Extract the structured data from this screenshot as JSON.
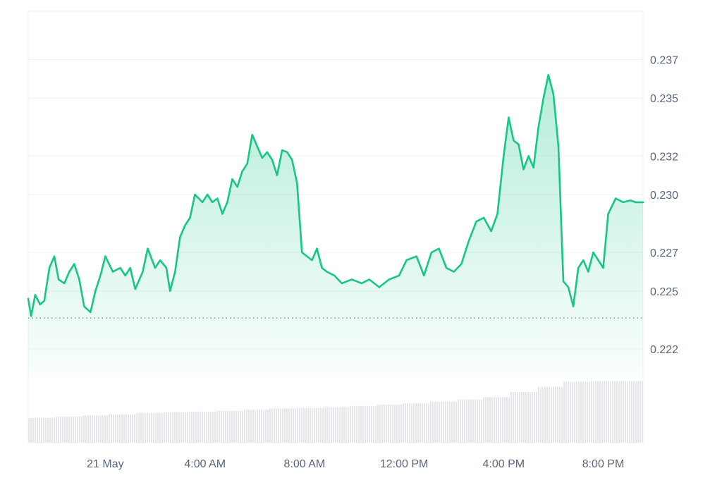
{
  "chart_data": {
    "type": "area",
    "title": "",
    "xlabel": "",
    "ylabel": "",
    "ylim": [
      0.2205,
      0.2395
    ],
    "x_tick_labels": [
      "21 May",
      "4:00 AM",
      "8:00 AM",
      "12:00 PM",
      "4:00 PM",
      "8:00 PM"
    ],
    "x_tick_hours": [
      0,
      4,
      8,
      12,
      16,
      20
    ],
    "x_range_hours": [
      -3.1,
      21.6
    ],
    "y_tick_labels": [
      "0.237",
      "0.235",
      "0.232",
      "0.230",
      "0.227",
      "0.225",
      "0.222"
    ],
    "y_tick_values": [
      0.237,
      0.235,
      0.232,
      0.23,
      0.227,
      0.225,
      0.222
    ],
    "reference_line": 0.2236,
    "grid": true,
    "colors": {
      "line": "#16c784",
      "grid": "#eff2f5",
      "tick_text": "#58667e",
      "reference": "#7a8290",
      "volume": "#e4e7ec"
    },
    "series": [
      {
        "x": [
          -3.1,
          -2.98,
          -2.82,
          -2.62,
          -2.45,
          -2.25,
          -2.05,
          -1.88,
          -1.65,
          -1.45,
          -1.25,
          -1.05,
          -0.85,
          -0.6,
          -0.4,
          -0.2,
          0.0,
          0.3,
          0.6,
          0.8,
          1.0,
          1.2,
          1.5,
          1.7,
          2.0,
          2.2,
          2.45,
          2.6,
          2.8,
          3.0,
          3.2,
          3.4,
          3.6,
          3.9,
          4.1,
          4.3,
          4.5,
          4.7,
          4.9,
          5.1,
          5.3,
          5.5,
          5.7,
          5.9,
          6.1,
          6.3,
          6.5,
          6.7,
          6.9,
          7.1,
          7.3,
          7.5,
          7.7,
          7.9,
          8.1,
          8.3,
          8.5,
          8.7,
          8.9,
          9.2,
          9.5,
          9.9,
          10.3,
          10.6,
          11.0,
          11.4,
          11.8,
          12.1,
          12.5,
          12.8,
          13.1,
          13.4,
          13.7,
          14.0,
          14.3,
          14.6,
          14.9,
          15.2,
          15.5,
          15.75,
          16.0,
          16.2,
          16.4,
          16.6,
          16.8,
          17.0,
          17.2,
          17.4,
          17.6,
          17.8,
          18.0,
          18.2,
          18.4,
          18.6,
          18.8,
          19.0,
          19.2,
          19.4,
          19.6,
          19.8,
          20.0,
          20.2,
          20.5,
          20.8,
          21.1,
          21.3,
          21.6
        ],
        "values": [
          0.2246,
          0.2237,
          0.2248,
          0.2243,
          0.2245,
          0.2262,
          0.2268,
          0.2256,
          0.2254,
          0.226,
          0.2264,
          0.2256,
          0.2242,
          0.2239,
          0.225,
          0.2258,
          0.2268,
          0.226,
          0.2262,
          0.2258,
          0.2262,
          0.2251,
          0.226,
          0.2272,
          0.2262,
          0.2266,
          0.2262,
          0.225,
          0.226,
          0.2278,
          0.2284,
          0.2288,
          0.23,
          0.2296,
          0.23,
          0.2296,
          0.2298,
          0.229,
          0.2296,
          0.2308,
          0.2304,
          0.2312,
          0.2316,
          0.2331,
          0.2325,
          0.2319,
          0.2322,
          0.2318,
          0.231,
          0.2323,
          0.2322,
          0.2318,
          0.2306,
          0.227,
          0.2268,
          0.2266,
          0.2272,
          0.2262,
          0.226,
          0.2258,
          0.2254,
          0.2256,
          0.2254,
          0.2256,
          0.2252,
          0.2256,
          0.2258,
          0.2266,
          0.2268,
          0.2258,
          0.227,
          0.2272,
          0.2262,
          0.226,
          0.2264,
          0.2276,
          0.2286,
          0.2288,
          0.2281,
          0.229,
          0.232,
          0.234,
          0.2328,
          0.2326,
          0.2313,
          0.232,
          0.2314,
          0.2335,
          0.235,
          0.2362,
          0.2352,
          0.2325,
          0.2255,
          0.2252,
          0.2242,
          0.2262,
          0.2266,
          0.226,
          0.227,
          0.2266,
          0.2262,
          0.229,
          0.2298,
          0.2296,
          0.2297,
          0.2296,
          0.2296
        ]
      }
    ],
    "volume": {
      "x_start": -3.1,
      "x_end": 21.6,
      "levels": [
        0.39,
        0.41,
        0.43,
        0.45,
        0.47,
        0.48,
        0.49,
        0.5,
        0.52,
        0.54,
        0.55,
        0.56,
        0.58,
        0.6,
        0.62,
        0.65,
        0.68,
        0.72,
        0.8,
        0.88,
        0.96,
        0.97,
        0.97
      ]
    }
  }
}
